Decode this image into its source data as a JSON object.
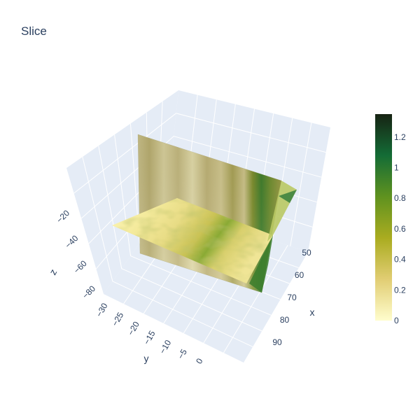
{
  "chart_data": {
    "type": "surface",
    "title": "Slice",
    "axes": {
      "x": {
        "label": "x",
        "ticks": [
          "50",
          "60",
          "70",
          "80",
          "90"
        ]
      },
      "y": {
        "label": "y",
        "ticks": [
          "−30",
          "−25",
          "−20",
          "−15",
          "−10",
          "−5",
          "0"
        ]
      },
      "z": {
        "label": "z",
        "ticks": [
          "−20",
          "−40",
          "−60",
          "−80"
        ]
      }
    },
    "colorscale": {
      "name": "speed",
      "range": [
        0,
        1.35
      ],
      "ticks": [
        "0",
        "0.2",
        "0.4",
        "0.6",
        "0.8",
        "1",
        "1.2"
      ],
      "colors": [
        "#fffdcd",
        "#e1cd73",
        "#aaac20",
        "#5f921f",
        "#146c36",
        "#172313"
      ]
    },
    "slices": [
      {
        "orientation": "vertical",
        "fixed_axis": "y",
        "description_value_range": [
          0,
          1.35
        ]
      },
      {
        "orientation": "horizontal",
        "fixed_axis": "z",
        "description_value_range": [
          0,
          1.0
        ]
      }
    ],
    "scene_background": "#e5ecf6",
    "grid": true
  }
}
